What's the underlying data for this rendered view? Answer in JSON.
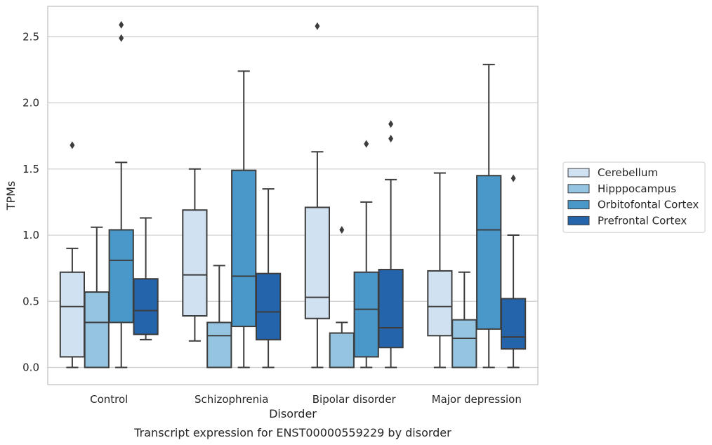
{
  "chart_data": {
    "type": "boxplot",
    "title": "",
    "caption": "Transcript expression for ENST00000559229 by disorder",
    "xlabel": "Disorder",
    "ylabel": "TPMs",
    "ylim": [
      -0.13,
      2.73
    ],
    "yticks": [
      0.0,
      0.5,
      1.0,
      1.5,
      2.0,
      2.5
    ],
    "ytick_labels": [
      "0.0",
      "0.5",
      "1.0",
      "1.5",
      "2.0",
      "2.5"
    ],
    "grid": "horizontal",
    "legend_position": "right",
    "categories": [
      "Control",
      "Schizophrenia",
      "Bipolar disorder",
      "Major depression"
    ],
    "series": [
      {
        "name": "Cerebellum",
        "color": "#d0e1f2",
        "boxes": [
          {
            "whislo": 0.0,
            "q1": 0.08,
            "med": 0.46,
            "q3": 0.72,
            "whishi": 0.9,
            "fliers": [
              1.68
            ]
          },
          {
            "whislo": 0.2,
            "q1": 0.39,
            "med": 0.7,
            "q3": 1.19,
            "whishi": 1.5,
            "fliers": []
          },
          {
            "whislo": 0.0,
            "q1": 0.37,
            "med": 0.53,
            "q3": 1.21,
            "whishi": 1.63,
            "fliers": [
              2.58
            ]
          },
          {
            "whislo": 0.0,
            "q1": 0.24,
            "med": 0.46,
            "q3": 0.73,
            "whishi": 1.47,
            "fliers": []
          }
        ]
      },
      {
        "name": "Hipppocampus",
        "color": "#94c4df",
        "boxes": [
          {
            "whislo": 0.0,
            "q1": 0.0,
            "med": 0.34,
            "q3": 0.57,
            "whishi": 1.06,
            "fliers": []
          },
          {
            "whislo": 0.0,
            "q1": 0.0,
            "med": 0.24,
            "q3": 0.34,
            "whishi": 0.77,
            "fliers": []
          },
          {
            "whislo": 0.0,
            "q1": 0.0,
            "med": 0.0,
            "q3": 0.26,
            "whishi": 0.34,
            "fliers": [
              1.04
            ]
          },
          {
            "whislo": 0.0,
            "q1": 0.0,
            "med": 0.22,
            "q3": 0.36,
            "whishi": 0.72,
            "fliers": []
          }
        ]
      },
      {
        "name": "Orbitofontal Cortex",
        "color": "#4a98c9",
        "boxes": [
          {
            "whislo": 0.0,
            "q1": 0.34,
            "med": 0.81,
            "q3": 1.04,
            "whishi": 1.55,
            "fliers": [
              2.49,
              2.59
            ]
          },
          {
            "whislo": 0.0,
            "q1": 0.31,
            "med": 0.69,
            "q3": 1.49,
            "whishi": 2.24,
            "fliers": []
          },
          {
            "whislo": 0.0,
            "q1": 0.08,
            "med": 0.44,
            "q3": 0.72,
            "whishi": 1.25,
            "fliers": [
              1.69
            ]
          },
          {
            "whislo": 0.0,
            "q1": 0.29,
            "med": 1.04,
            "q3": 1.45,
            "whishi": 2.29,
            "fliers": []
          }
        ]
      },
      {
        "name": "Prefrontal Cortex",
        "color": "#2364aa",
        "boxes": [
          {
            "whislo": 0.21,
            "q1": 0.25,
            "med": 0.43,
            "q3": 0.67,
            "whishi": 1.13,
            "fliers": []
          },
          {
            "whislo": 0.0,
            "q1": 0.21,
            "med": 0.42,
            "q3": 0.71,
            "whishi": 1.35,
            "fliers": []
          },
          {
            "whislo": 0.0,
            "q1": 0.15,
            "med": 0.3,
            "q3": 0.74,
            "whishi": 1.42,
            "fliers": [
              1.73,
              1.84
            ]
          },
          {
            "whislo": 0.0,
            "q1": 0.14,
            "med": 0.23,
            "q3": 0.52,
            "whishi": 1.0,
            "fliers": [
              1.43
            ]
          }
        ]
      }
    ]
  }
}
